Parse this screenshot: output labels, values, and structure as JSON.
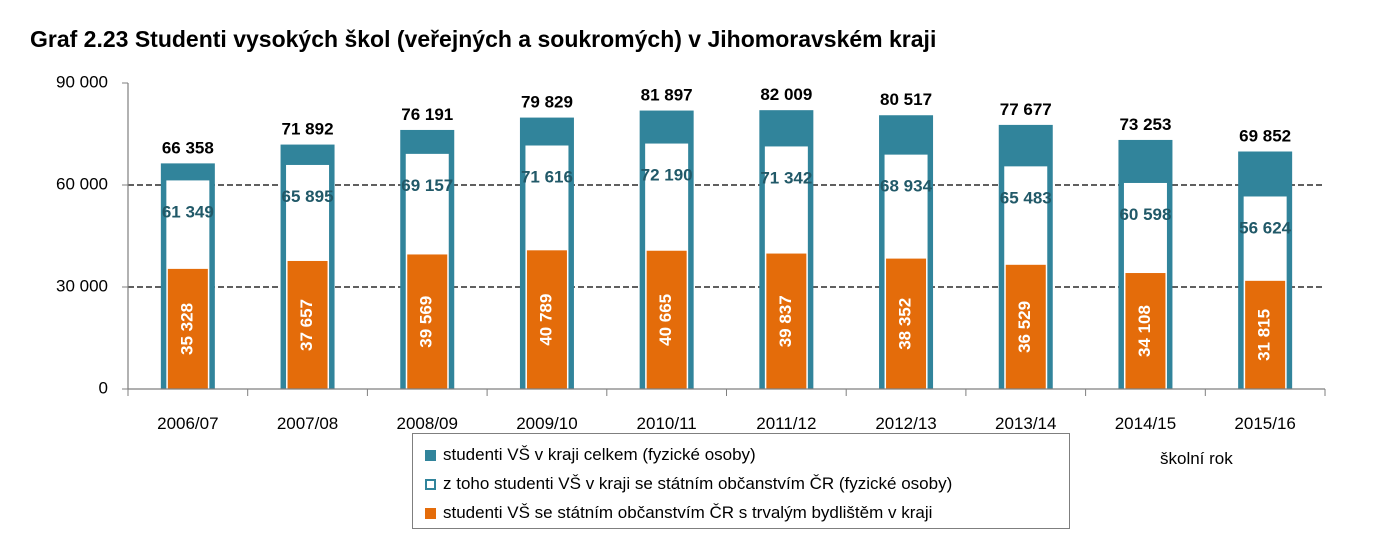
{
  "chart_data": {
    "type": "bar",
    "title": "Graf 2.23 Studenti vysokých škol (veřejných a soukromých) v Jihomoravském kraji",
    "xlabel": "školní rok",
    "ylabel": "",
    "ylim": [
      0,
      90000
    ],
    "yticks": [
      "0",
      "30 000",
      "60 000",
      "90 000"
    ],
    "ytick_values": [
      0,
      30000,
      60000,
      90000
    ],
    "grid": true,
    "legend_position": "bottom",
    "categories": [
      "2006/07",
      "2007/08",
      "2008/09",
      "2009/10",
      "2010/11",
      "2011/12",
      "2012/13",
      "2013/14",
      "2014/15",
      "2015/16"
    ],
    "series": [
      {
        "name": "studenti VŠ v kraji celkem (fyzické osoby)",
        "color": "#31849b",
        "values": [
          66358,
          71892,
          76191,
          79829,
          81897,
          82009,
          80517,
          77677,
          73253,
          69852
        ],
        "labels": [
          "66 358",
          "71 892",
          "76 191",
          "79 829",
          "81 897",
          "82 009",
          "80 517",
          "77 677",
          "73 253",
          "69 852"
        ]
      },
      {
        "name": "z toho studenti VŠ v kraji se státním občanstvím ČR (fyzické osoby)",
        "color": "#ffffff",
        "label_color": "#215968",
        "values": [
          61349,
          65895,
          69157,
          71616,
          72190,
          71342,
          68934,
          65483,
          60598,
          56624
        ],
        "labels": [
          "61 349",
          "65 895",
          "69 157",
          "71 616",
          "72 190",
          "71 342",
          "68 934",
          "65 483",
          "60 598",
          "56 624"
        ]
      },
      {
        "name": "studenti VŠ se státním občanstvím ČR s trvalým bydlištěm v kraji",
        "color": "#e46c0a",
        "values": [
          35328,
          37657,
          39569,
          40789,
          40665,
          39837,
          38352,
          36529,
          34108,
          31815
        ],
        "labels": [
          "35 328",
          "37 657",
          "39 569",
          "40 789",
          "40 665",
          "39 837",
          "38 352",
          "36 529",
          "34 108",
          "31 815"
        ]
      }
    ]
  }
}
